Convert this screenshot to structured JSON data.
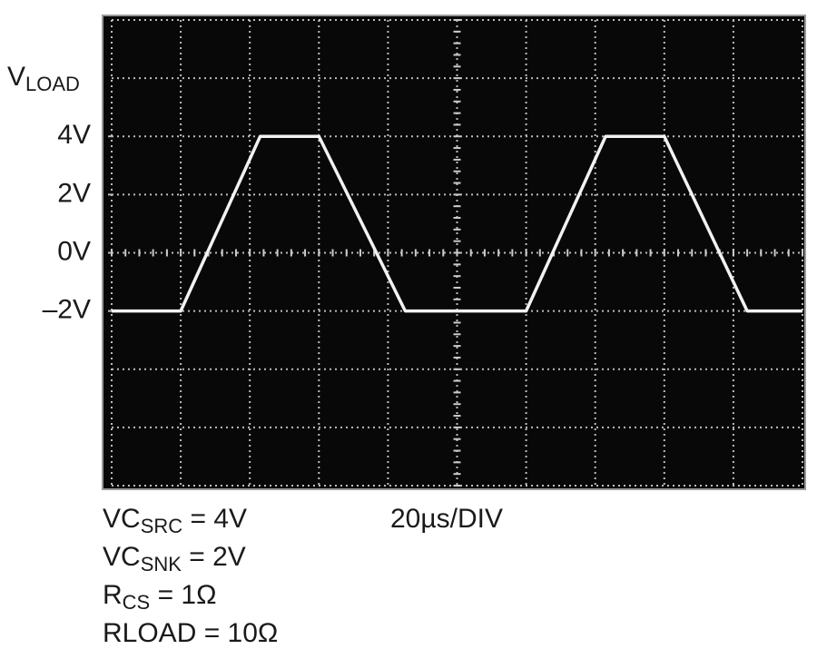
{
  "chart_data": {
    "type": "line",
    "y_label": {
      "text": "V",
      "sub": "LOAD"
    },
    "annotations": [
      {
        "text": "VC",
        "sub": "SRC",
        "tail": " = 4V"
      },
      {
        "text": "VC",
        "sub": "SNK",
        "tail": " = 2V"
      },
      {
        "text": "R",
        "sub": "CS",
        "tail": " = 1Ω"
      },
      {
        "text": "RLOAD = 10Ω"
      }
    ],
    "x_scale": "20µs/DIV",
    "x": [
      0,
      20,
      43,
      60,
      85,
      120,
      143,
      160,
      184,
      200
    ],
    "series": [
      {
        "color": "#f2f2f2",
        "values": [
          -2,
          -2,
          4,
          4,
          -2,
          -2,
          4,
          4,
          -2,
          -2
        ]
      }
    ],
    "xlim": [
      0,
      200
    ],
    "ylim": [
      -8,
      8
    ],
    "yticks": [
      {
        "value": 4,
        "label": "4V"
      },
      {
        "value": 2,
        "label": "2V"
      },
      {
        "value": 0,
        "label": "0V"
      },
      {
        "value": -2,
        "label": "–2V"
      }
    ],
    "xgrid": [
      0,
      20,
      40,
      60,
      80,
      100,
      120,
      140,
      160,
      180,
      200
    ],
    "ygrid": [
      -8,
      -6,
      -4,
      -2,
      0,
      2,
      4,
      6,
      8
    ],
    "grid": true
  }
}
